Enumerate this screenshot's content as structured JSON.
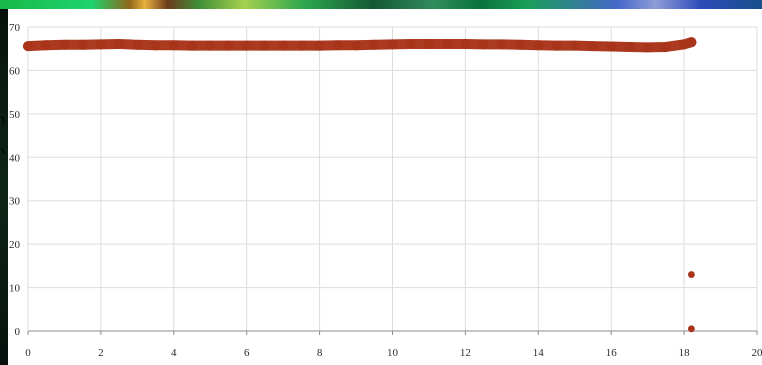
{
  "chart_data": {
    "type": "scatter",
    "title": "",
    "xlabel": "",
    "ylabel": "",
    "xlim": [
      0,
      20
    ],
    "ylim": [
      0,
      70
    ],
    "grid": true,
    "legend": "none",
    "x_ticks": [
      0,
      2,
      4,
      6,
      8,
      10,
      12,
      14,
      16,
      18,
      20
    ],
    "y_ticks": [
      0,
      10,
      20,
      30,
      40,
      50,
      60,
      70
    ],
    "series": [
      {
        "color": "#a8341a",
        "points": [
          {
            "x": 0.0,
            "y": 65.6
          },
          {
            "x": 0.5,
            "y": 65.8
          },
          {
            "x": 1.0,
            "y": 65.9
          },
          {
            "x": 1.5,
            "y": 65.9
          },
          {
            "x": 2.0,
            "y": 66.0
          },
          {
            "x": 2.5,
            "y": 66.1
          },
          {
            "x": 3.0,
            "y": 65.9
          },
          {
            "x": 3.5,
            "y": 65.8
          },
          {
            "x": 4.0,
            "y": 65.8
          },
          {
            "x": 4.5,
            "y": 65.7
          },
          {
            "x": 5.0,
            "y": 65.7
          },
          {
            "x": 5.5,
            "y": 65.7
          },
          {
            "x": 6.0,
            "y": 65.7
          },
          {
            "x": 6.5,
            "y": 65.7
          },
          {
            "x": 7.0,
            "y": 65.7
          },
          {
            "x": 7.5,
            "y": 65.7
          },
          {
            "x": 8.0,
            "y": 65.7
          },
          {
            "x": 8.5,
            "y": 65.8
          },
          {
            "x": 9.0,
            "y": 65.8
          },
          {
            "x": 9.5,
            "y": 65.9
          },
          {
            "x": 10.0,
            "y": 66.0
          },
          {
            "x": 10.5,
            "y": 66.1
          },
          {
            "x": 11.0,
            "y": 66.1
          },
          {
            "x": 11.5,
            "y": 66.1
          },
          {
            "x": 12.0,
            "y": 66.1
          },
          {
            "x": 12.5,
            "y": 66.0
          },
          {
            "x": 13.0,
            "y": 66.0
          },
          {
            "x": 13.5,
            "y": 65.9
          },
          {
            "x": 14.0,
            "y": 65.8
          },
          {
            "x": 14.5,
            "y": 65.7
          },
          {
            "x": 15.0,
            "y": 65.7
          },
          {
            "x": 15.5,
            "y": 65.6
          },
          {
            "x": 16.0,
            "y": 65.5
          },
          {
            "x": 16.5,
            "y": 65.4
          },
          {
            "x": 17.0,
            "y": 65.3
          },
          {
            "x": 17.5,
            "y": 65.4
          },
          {
            "x": 18.0,
            "y": 66.0
          },
          {
            "x": 18.2,
            "y": 66.5
          },
          {
            "x": 18.2,
            "y": 13.0
          },
          {
            "x": 18.2,
            "y": 0.5
          }
        ]
      }
    ]
  }
}
